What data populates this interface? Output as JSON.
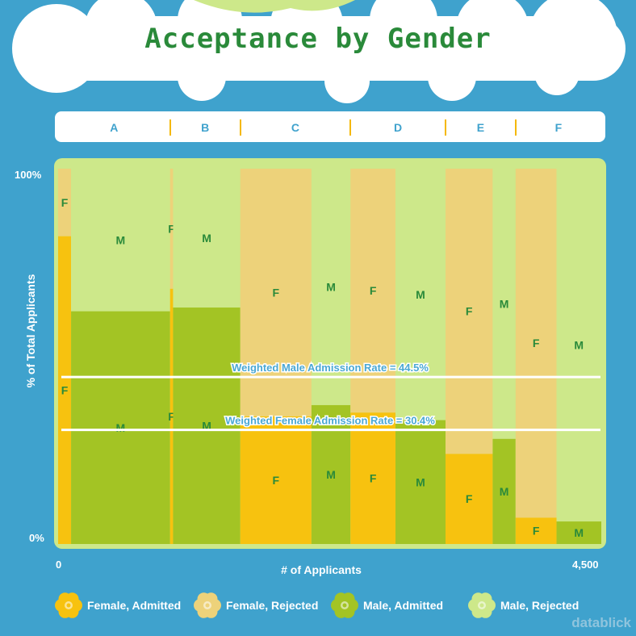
{
  "title": "Acceptance by Gender",
  "colors": {
    "background": "#3fa2cd",
    "female_admitted": "#f7c20f",
    "female_rejected": "#edd27a",
    "male_admitted": "#a3c424",
    "male_rejected": "#cde88a",
    "title": "#2a8a3a",
    "mark_label": "#2a8a3a"
  },
  "brand": "datablick",
  "chart_data": {
    "type": "bar",
    "subtype": "marimekko",
    "xlabel": "# of Applicants",
    "ylabel": "% of Total Applicants",
    "x_tick_min": "0",
    "x_tick_max": "4,500",
    "y_tick_min": "0%",
    "y_tick_max": "100%",
    "xlim": [
      0,
      4526
    ],
    "ylim": [
      0,
      100
    ],
    "departments": [
      {
        "name": "A",
        "female": {
          "applicants": 108,
          "admitted_pct": 82
        },
        "male": {
          "applicants": 825,
          "admitted_pct": 62
        }
      },
      {
        "name": "B",
        "female": {
          "applicants": 25,
          "admitted_pct": 68
        },
        "male": {
          "applicants": 560,
          "admitted_pct": 63
        }
      },
      {
        "name": "C",
        "female": {
          "applicants": 593,
          "admitted_pct": 34
        },
        "male": {
          "applicants": 325,
          "admitted_pct": 37
        }
      },
      {
        "name": "D",
        "female": {
          "applicants": 375,
          "admitted_pct": 35
        },
        "male": {
          "applicants": 417,
          "admitted_pct": 33
        }
      },
      {
        "name": "E",
        "female": {
          "applicants": 393,
          "admitted_pct": 24
        },
        "male": {
          "applicants": 191,
          "admitted_pct": 28
        }
      },
      {
        "name": "F",
        "female": {
          "applicants": 341,
          "admitted_pct": 7
        },
        "male": {
          "applicants": 373,
          "admitted_pct": 6
        }
      }
    ],
    "female_marker": "F",
    "male_marker": "M",
    "reference_lines": [
      {
        "label": "Weighted Male Admission Rate = 44.5%",
        "value": 44.5
      },
      {
        "label": "Weighted Female Admission Rate = 30.4%",
        "value": 30.4
      }
    ],
    "legend": [
      {
        "label": "Female, Admitted",
        "color_key": "female_admitted"
      },
      {
        "label": "Female, Rejected",
        "color_key": "female_rejected"
      },
      {
        "label": "Male, Admitted",
        "color_key": "male_admitted"
      },
      {
        "label": "Male, Rejected",
        "color_key": "male_rejected"
      }
    ]
  }
}
